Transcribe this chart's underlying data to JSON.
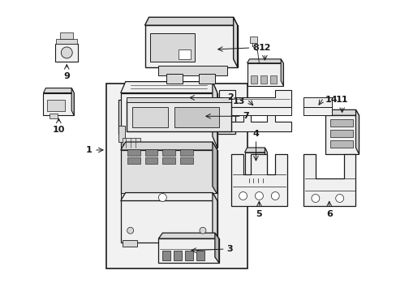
{
  "bg_color": "#ffffff",
  "line_color": "#1a1a1a",
  "fill_light": "#f0f0f0",
  "fill_med": "#d8d8d8",
  "fill_dark": "#b8b8b8",
  "dot_fill": "#e8e8e8",
  "figsize": [
    4.89,
    3.6
  ],
  "dpi": 100
}
